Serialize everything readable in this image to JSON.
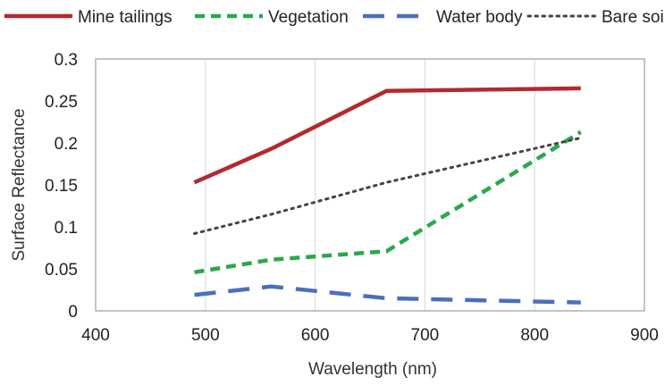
{
  "chart_data": {
    "type": "line",
    "title": "",
    "xlabel": "Wavelength (nm)",
    "ylabel": "Surface Reflectance",
    "xlim": [
      400,
      900
    ],
    "ylim": [
      0,
      0.3
    ],
    "x_ticks": [
      "400",
      "500",
      "600",
      "700",
      "800",
      "900"
    ],
    "y_ticks": [
      "0",
      "0.05",
      "0.1",
      "0.15",
      "0.2",
      "0.25",
      "0.3"
    ],
    "grid": "vertical",
    "legend_position": "top",
    "series": [
      {
        "name": "Mine tailings",
        "color": "#b5282e",
        "dash": "solid",
        "x": [
          490,
          560,
          665,
          842
        ],
        "y": [
          0.153,
          0.193,
          0.262,
          0.265
        ]
      },
      {
        "name": "Vegetation",
        "color": "#2aa84c",
        "dash": "dashed",
        "x": [
          490,
          560,
          665,
          842
        ],
        "y": [
          0.046,
          0.061,
          0.071,
          0.213
        ]
      },
      {
        "name": "Water body",
        "color": "#4a6fbe",
        "dash": "long-dashed",
        "x": [
          490,
          560,
          665,
          842
        ],
        "y": [
          0.019,
          0.029,
          0.015,
          0.01
        ]
      },
      {
        "name": "Bare soil",
        "color": "#444444",
        "dash": "dotted",
        "x": [
          490,
          560,
          665,
          842
        ],
        "y": [
          0.092,
          0.115,
          0.153,
          0.206
        ]
      }
    ]
  }
}
